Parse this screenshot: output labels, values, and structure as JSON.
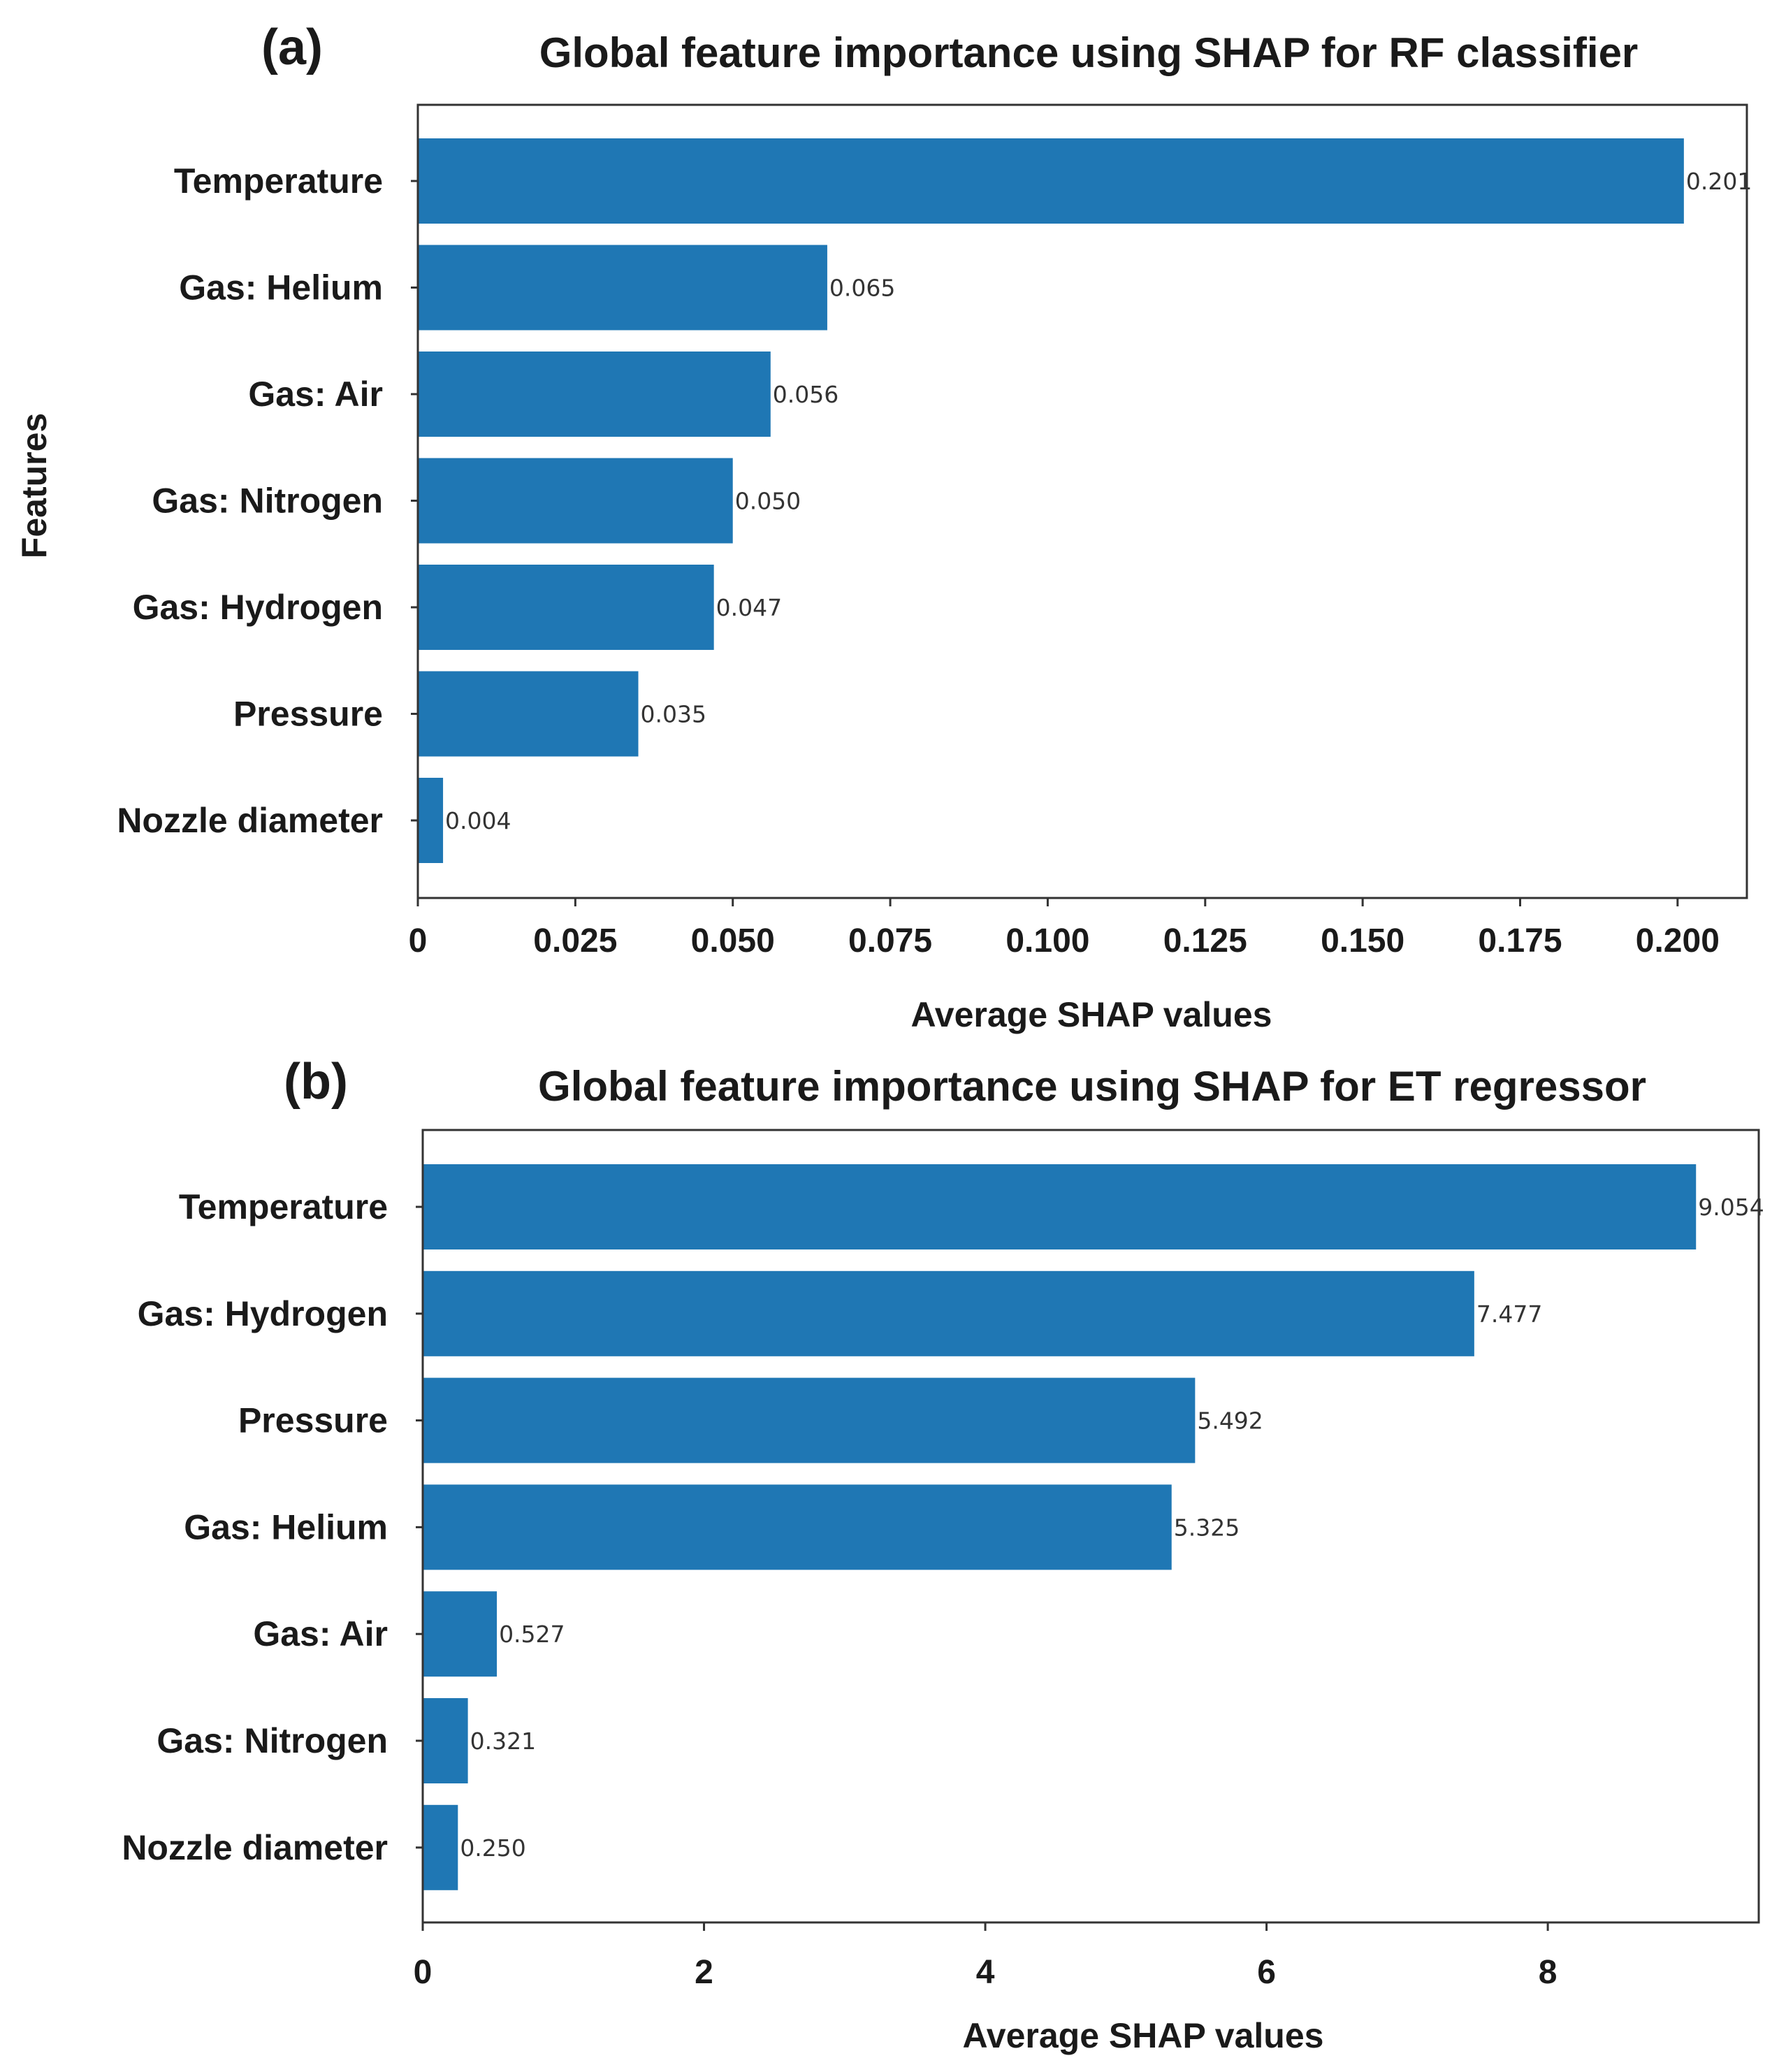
{
  "colors": {
    "bar": "#1f77b4",
    "axis": "#333333",
    "text": "#1a1a1a"
  },
  "y_axis_label": "Features",
  "chart_data": [
    {
      "type": "bar",
      "orientation": "horizontal",
      "panel_label": "(a)",
      "title": "Global feature importance using SHAP for RF classifier",
      "xlabel": "Average SHAP values",
      "ylabel": "Features",
      "categories": [
        "Temperature",
        "Gas: Helium",
        "Gas: Air",
        "Gas: Nitrogen",
        "Gas: Hydrogen",
        "Pressure",
        "Nozzle diameter"
      ],
      "values": [
        0.201,
        0.065,
        0.056,
        0.05,
        0.047,
        0.035,
        0.004
      ],
      "value_labels": [
        "0.201",
        "0.065",
        "0.056",
        "0.050",
        "0.047",
        "0.035",
        "0.004"
      ],
      "xticks": [
        0,
        0.025,
        0.05,
        0.075,
        0.1,
        0.125,
        0.15,
        0.175,
        0.2
      ],
      "xtick_labels": [
        "0",
        "0.025",
        "0.050",
        "0.075",
        "0.100",
        "0.125",
        "0.150",
        "0.175",
        "0.200"
      ],
      "xlim": [
        0,
        0.211
      ]
    },
    {
      "type": "bar",
      "orientation": "horizontal",
      "panel_label": "(b)",
      "title": "Global feature importance using SHAP for ET regressor",
      "xlabel": "Average SHAP values",
      "ylabel": "",
      "categories": [
        "Temperature",
        "Gas: Hydrogen",
        "Pressure",
        "Gas: Helium",
        "Gas: Air",
        "Gas: Nitrogen",
        "Nozzle diameter"
      ],
      "values": [
        9.054,
        7.477,
        5.492,
        5.325,
        0.527,
        0.321,
        0.25
      ],
      "value_labels": [
        "9.054",
        "7.477",
        "5.492",
        "5.325",
        "0.527",
        "0.321",
        "0.250"
      ],
      "xticks": [
        0,
        2,
        4,
        6,
        8
      ],
      "xtick_labels": [
        "0",
        "2",
        "4",
        "6",
        "8"
      ],
      "xlim": [
        0,
        9.5
      ]
    }
  ]
}
